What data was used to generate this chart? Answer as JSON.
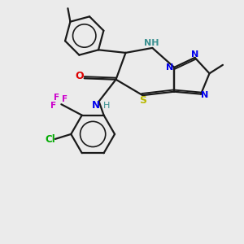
{
  "background_color": "#ebebeb",
  "bond_color": "#1a1a1a",
  "atom_colors": {
    "N": "#0000ee",
    "NH_teal": "#3a9090",
    "S": "#b8b800",
    "O": "#dd0000",
    "Cl": "#00aa00",
    "F": "#cc00cc",
    "C": "#1a1a1a"
  },
  "figsize": [
    3.0,
    3.0
  ],
  "dpi": 100
}
